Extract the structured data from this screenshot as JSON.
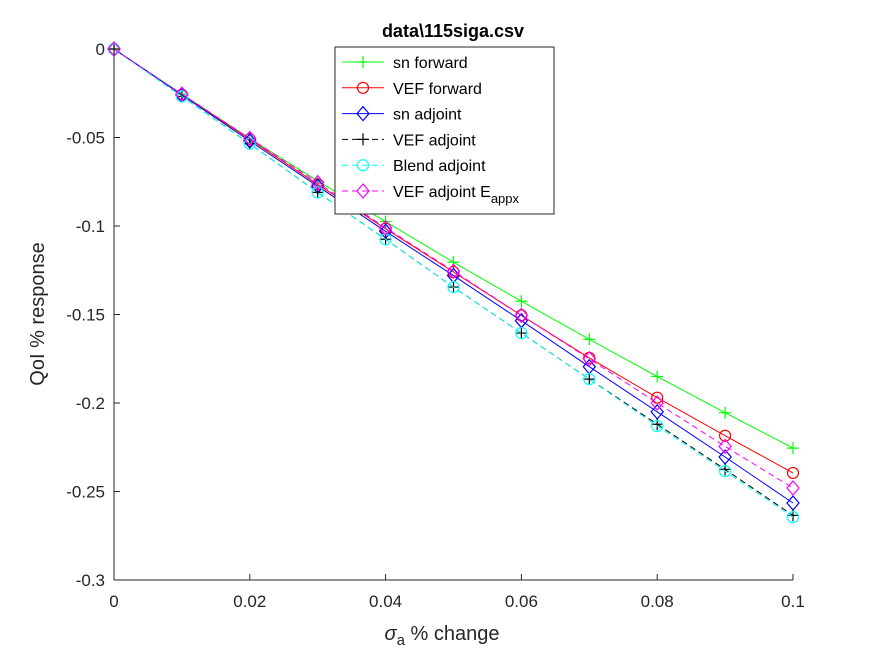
{
  "chart_data": {
    "type": "line",
    "title": "data\\115siga.csv",
    "xlabel": {
      "symbol": "σ",
      "subscript": "a",
      "text": " % change"
    },
    "ylabel": "QoI % response",
    "xlim": [
      0,
      0.1
    ],
    "ylim": [
      -0.3,
      0.0
    ],
    "xticks": [
      0,
      0.02,
      0.04,
      0.06,
      0.08,
      0.1
    ],
    "xtick_labels": [
      "0",
      "0.02",
      "0.04",
      "0.06",
      "0.08",
      "0.1"
    ],
    "yticks": [
      0,
      -0.05,
      -0.1,
      -0.15,
      -0.2,
      -0.25,
      -0.3
    ],
    "ytick_labels": [
      "0",
      "-0.05",
      "-0.1",
      "-0.15",
      "-0.2",
      "-0.25",
      "-0.3"
    ],
    "grid": false,
    "legend_position": "top-center",
    "x": [
      0,
      0.01,
      0.02,
      0.03,
      0.04,
      0.05,
      0.06,
      0.07,
      0.08,
      0.09,
      0.1
    ],
    "series": [
      {
        "name": "sn forward",
        "color": "#00ff00",
        "line": "solid",
        "marker": "plus",
        "values": [
          0,
          -0.0255,
          -0.0505,
          -0.0745,
          -0.0975,
          -0.1205,
          -0.1425,
          -0.164,
          -0.185,
          -0.2055,
          -0.2255
        ]
      },
      {
        "name": "VEF forward",
        "color": "#ff0000",
        "line": "solid",
        "marker": "circle",
        "values": [
          0,
          -0.0258,
          -0.051,
          -0.0765,
          -0.1015,
          -0.126,
          -0.1505,
          -0.1745,
          -0.197,
          -0.2185,
          -0.2395
        ]
      },
      {
        "name": "sn adjoint",
        "color": "#0000ff",
        "line": "solid",
        "marker": "diamond",
        "values": [
          0,
          -0.026,
          -0.052,
          -0.0775,
          -0.103,
          -0.128,
          -0.1535,
          -0.1795,
          -0.205,
          -0.2305,
          -0.2565
        ]
      },
      {
        "name": "VEF adjoint",
        "color": "#000000",
        "line": "dashed",
        "marker": "plus",
        "values": [
          0,
          -0.0268,
          -0.0535,
          -0.081,
          -0.1075,
          -0.1345,
          -0.1605,
          -0.1865,
          -0.212,
          -0.2375,
          -0.2635
        ]
      },
      {
        "name": "Blend adjoint",
        "color": "#00ffff",
        "line": "dashed",
        "marker": "circle",
        "values": [
          0,
          -0.0268,
          -0.0535,
          -0.081,
          -0.1075,
          -0.1345,
          -0.1605,
          -0.1865,
          -0.213,
          -0.2385,
          -0.2645
        ]
      },
      {
        "name": "VEF adjoint E",
        "name_subscript": "appx",
        "color": "#ff00ff",
        "line": "dashed",
        "marker": "diamond",
        "values": [
          0,
          -0.0255,
          -0.0505,
          -0.0755,
          -0.101,
          -0.1255,
          -0.1505,
          -0.175,
          -0.2,
          -0.2245,
          -0.248
        ]
      }
    ]
  }
}
